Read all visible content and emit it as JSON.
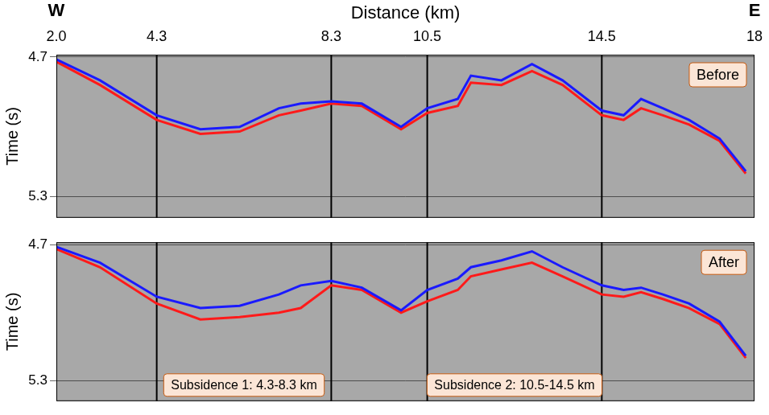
{
  "chart_data": [
    {
      "type": "line",
      "title": "Before",
      "x_label": "Distance (km)",
      "y_label": "Time (s)",
      "x": [
        2.0,
        3.0,
        4.3,
        5.3,
        6.2,
        7.1,
        7.6,
        8.3,
        9.0,
        9.9,
        10.5,
        11.2,
        11.5,
        12.2,
        12.9,
        13.6,
        14.5,
        15.0,
        15.4,
        15.9,
        16.5,
        17.2,
        17.8
      ],
      "series": [
        {
          "color": "#1a1aff",
          "values": [
            4.71,
            4.8,
            4.95,
            5.01,
            5.0,
            4.92,
            4.9,
            4.89,
            4.9,
            5.0,
            4.92,
            4.88,
            4.78,
            4.8,
            4.73,
            4.8,
            4.93,
            4.95,
            4.88,
            4.92,
            4.97,
            5.05,
            5.19
          ]
        },
        {
          "color": "#ff1a1a",
          "values": [
            4.72,
            4.82,
            4.97,
            5.03,
            5.02,
            4.95,
            4.93,
            4.9,
            4.91,
            5.01,
            4.94,
            4.91,
            4.81,
            4.82,
            4.76,
            4.82,
            4.95,
            4.97,
            4.92,
            4.95,
            4.99,
            5.06,
            5.2
          ]
        }
      ],
      "xlim": [
        2.0,
        18
      ],
      "xticks": [
        {
          "value": 2.0,
          "label": "2.0"
        },
        4.3,
        8.3,
        10.5,
        14.5,
        18
      ],
      "ylim": [
        4.69,
        5.39
      ],
      "yticks": [
        4.7,
        5.3
      ],
      "grid": true,
      "vertical_lines": [
        4.3,
        8.3,
        10.5,
        14.5
      ],
      "annotations": [
        {
          "text": "W",
          "x": 2.0
        },
        {
          "text": "E",
          "x": 18
        }
      ]
    },
    {
      "type": "line",
      "title": "After",
      "y_label": "Time (s)",
      "x": [
        2.0,
        3.0,
        4.3,
        5.3,
        6.2,
        7.1,
        7.6,
        8.3,
        9.0,
        9.9,
        10.5,
        11.2,
        11.5,
        12.2,
        12.9,
        13.6,
        14.5,
        15.0,
        15.4,
        15.9,
        16.5,
        17.2,
        17.8
      ],
      "series": [
        {
          "color": "#1a1aff",
          "values": [
            4.71,
            4.78,
            4.93,
            4.98,
            4.97,
            4.92,
            4.88,
            4.86,
            4.89,
            4.99,
            4.9,
            4.85,
            4.8,
            4.77,
            4.73,
            4.8,
            4.88,
            4.9,
            4.89,
            4.92,
            4.96,
            5.04,
            5.19
          ]
        },
        {
          "color": "#ff1a1a",
          "values": [
            4.72,
            4.8,
            4.96,
            5.03,
            5.02,
            5.0,
            4.98,
            4.88,
            4.9,
            5.0,
            4.95,
            4.9,
            4.84,
            4.81,
            4.78,
            4.84,
            4.92,
            4.93,
            4.91,
            4.94,
            4.98,
            5.05,
            5.2
          ]
        }
      ],
      "xlim": [
        2.0,
        18
      ],
      "xticks": [
        {
          "value": 2.0,
          "label": "2.0"
        },
        4.3,
        8.3,
        10.5,
        14.5,
        18
      ],
      "ylim": [
        4.69,
        5.39
      ],
      "yticks": [
        4.7,
        5.3
      ],
      "grid": true,
      "tick_labels": "y",
      "vertical_lines": [
        4.3,
        8.3,
        10.5,
        14.5
      ],
      "annotations": [
        {
          "text": "Subsidence 1: 4.3-8.3 km",
          "x": [
            4.3,
            8.3
          ]
        },
        {
          "text": "Subsidence 2: 10.5-14.5 km",
          "x": [
            10.5,
            14.5
          ]
        }
      ]
    }
  ]
}
